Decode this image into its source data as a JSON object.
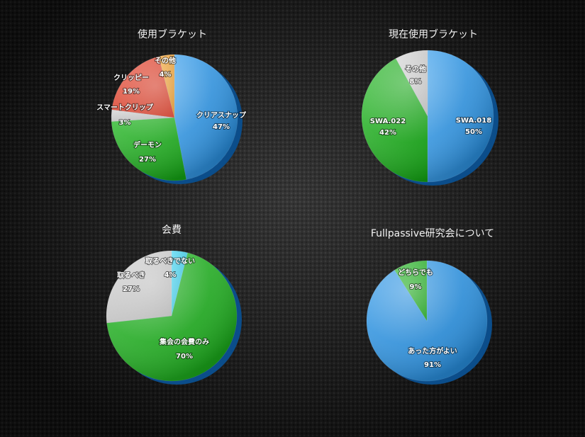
{
  "chart_data": [
    {
      "type": "pie",
      "title": "使用ブラケット",
      "slices": [
        {
          "label": "クリアスナップ",
          "value": 47,
          "display": "47%",
          "color": "#1e90e8"
        },
        {
          "label": "デーモン",
          "value": 27,
          "display": "27%",
          "color": "#12b012"
        },
        {
          "label": "スマートクリップ",
          "value": 3,
          "display": "3%",
          "color": "#cfcfcf"
        },
        {
          "label": "クリッピー",
          "value": 19,
          "display": "19%",
          "color": "#e8321a"
        },
        {
          "label": "その他",
          "value": 4,
          "display": "4%",
          "color": "#f59a1a"
        }
      ]
    },
    {
      "type": "pie",
      "title": "現在使用ブラケット",
      "slices": [
        {
          "label": "SWA.018",
          "value": 50,
          "display": "50%",
          "color": "#1e90e8"
        },
        {
          "label": "SWA.022",
          "value": 42,
          "display": "42%",
          "color": "#12b012"
        },
        {
          "label": "その他",
          "value": 8,
          "display": "8%",
          "color": "#cfcfcf"
        }
      ]
    },
    {
      "type": "pie",
      "title": "会費",
      "slices": [
        {
          "label": "取るべきでない",
          "value": 4,
          "display": "4%",
          "color": "#2ecff0"
        },
        {
          "label": "集会の会費のみ",
          "value": 70,
          "display": "70%",
          "color": "#12b012"
        },
        {
          "label": "取るべき",
          "value": 27,
          "display": "27%",
          "color": "#cfcfcf"
        }
      ]
    },
    {
      "type": "pie",
      "title": "Fullpassive研究会について",
      "slices": [
        {
          "label": "あった方がよい",
          "value": 91,
          "display": "91%",
          "color": "#1e90e8"
        },
        {
          "label": "どちらでも",
          "value": 9,
          "display": "9%",
          "color": "#12b012"
        }
      ]
    }
  ]
}
